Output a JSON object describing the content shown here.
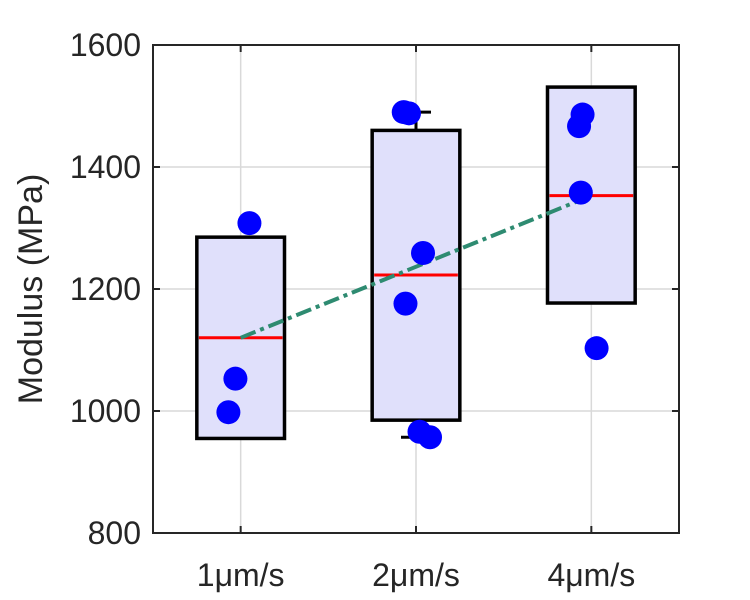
{
  "chart_data": {
    "type": "box",
    "title": "",
    "xlabel": "",
    "ylabel": "Modulus (MPa)",
    "categories": [
      "1μm/s",
      "2μm/s",
      "4μm/s"
    ],
    "ylim": [
      800,
      1600
    ],
    "yticks": [
      800,
      1000,
      1200,
      1400,
      1600
    ],
    "grid": true,
    "boxes": [
      {
        "category": "1μm/s",
        "q1": 955,
        "median": 1120,
        "q3": 1285,
        "whisker_low": 955,
        "whisker_high": 1285
      },
      {
        "category": "2μm/s",
        "q1": 985,
        "median": 1223,
        "q3": 1460,
        "whisker_low": 957,
        "whisker_high": 1490
      },
      {
        "category": "4μm/s",
        "q1": 1177,
        "median": 1353,
        "q3": 1531,
        "whisker_low": 1177,
        "whisker_high": 1531
      }
    ],
    "points": [
      {
        "category": "1μm/s",
        "offset": 0.05,
        "y": 1308
      },
      {
        "category": "1μm/s",
        "offset": -0.03,
        "y": 1053
      },
      {
        "category": "1μm/s",
        "offset": -0.07,
        "y": 998
      },
      {
        "category": "2μm/s",
        "offset": -0.07,
        "y": 1490
      },
      {
        "category": "2μm/s",
        "offset": -0.04,
        "y": 1488
      },
      {
        "category": "2μm/s",
        "offset": 0.04,
        "y": 1259
      },
      {
        "category": "2μm/s",
        "offset": -0.06,
        "y": 1176
      },
      {
        "category": "2μm/s",
        "offset": 0.02,
        "y": 966
      },
      {
        "category": "2μm/s",
        "offset": 0.08,
        "y": 957
      },
      {
        "category": "4μm/s",
        "offset": -0.05,
        "y": 1486
      },
      {
        "category": "4μm/s",
        "offset": -0.07,
        "y": 1467
      },
      {
        "category": "4μm/s",
        "offset": -0.06,
        "y": 1358
      },
      {
        "category": "4μm/s",
        "offset": 0.03,
        "y": 1103
      }
    ],
    "trend_line": {
      "from": [
        "1μm/s",
        1120
      ],
      "to": [
        "4μm/s",
        1353
      ]
    },
    "colors": {
      "box_fill": "#e0e0fb",
      "box_edge": "#000000",
      "median": "#ff0000",
      "points": "#0000ff",
      "trend": "#2e8b71",
      "grid": "#d9d9d9",
      "axis": "#262626"
    }
  }
}
